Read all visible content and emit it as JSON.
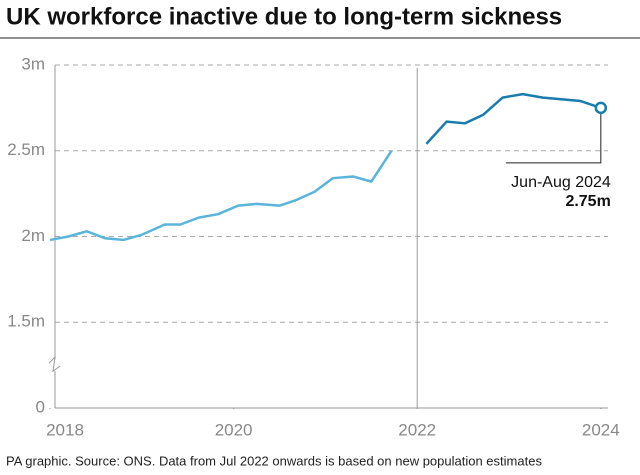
{
  "chart_data": {
    "type": "line",
    "title": "UK workforce inactive due to long-term sickness",
    "source": "PA graphic. Source: ONS. Data from Jul 2022 onwards is based on new population estimates",
    "series": [
      {
        "color": "#5ab4dc",
        "x": [
          2018.0,
          2018.2,
          2018.4,
          2018.6,
          2018.8,
          2019.0,
          2019.25,
          2019.42,
          2019.62,
          2019.83,
          2020.05,
          2020.25,
          2020.5,
          2020.67,
          2020.88,
          2021.08,
          2021.3,
          2021.5,
          2021.72
        ],
        "values": [
          1.98,
          2.0,
          2.03,
          1.99,
          1.98,
          2.01,
          2.07,
          2.07,
          2.11,
          2.13,
          2.18,
          2.19,
          2.18,
          2.21,
          2.26,
          2.34,
          2.35,
          2.32,
          2.5
        ]
      },
      {
        "color": "#1a7cae",
        "x": [
          2022.1,
          2022.32,
          2022.52,
          2022.72,
          2022.93,
          2023.15,
          2023.37,
          2023.57,
          2023.78,
          2024.0
        ],
        "values": [
          2.54,
          2.67,
          2.66,
          2.71,
          2.81,
          2.83,
          2.81,
          2.8,
          2.79,
          2.75
        ]
      }
    ],
    "xlim": [
      2018,
      2024.1
    ],
    "xticks": [
      2018,
      2020,
      2022,
      2024
    ],
    "ylim": [
      1,
      3
    ],
    "yticks": [
      {
        "value": 0,
        "label": "0"
      },
      {
        "value": 1.5,
        "label": "1.5m"
      },
      {
        "value": 2,
        "label": "2m"
      },
      {
        "value": 2.5,
        "label": "2.5m"
      },
      {
        "value": 3,
        "label": "3m"
      }
    ],
    "axis_break": true,
    "grid": true,
    "divider_x": 2022,
    "annotation": {
      "label": "Jun-Aug 2024",
      "value_label": "2.75m"
    }
  }
}
